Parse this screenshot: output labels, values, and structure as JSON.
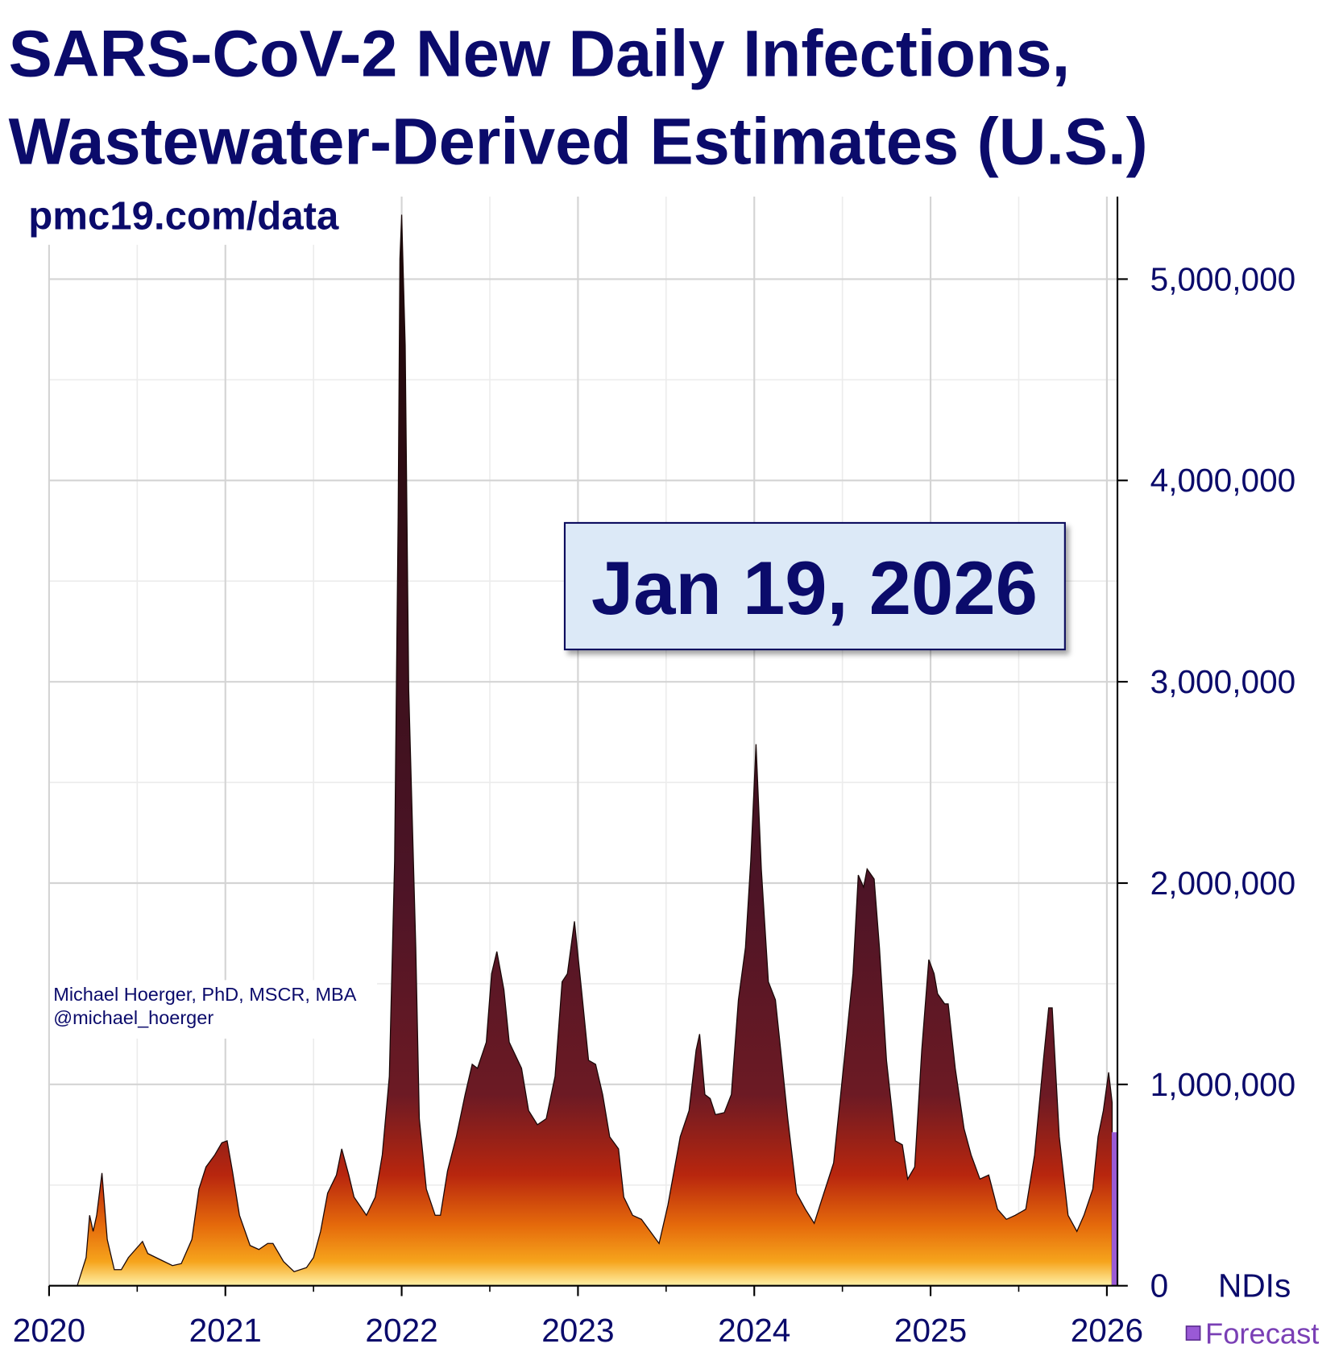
{
  "chart_data": {
    "type": "area",
    "title": [
      "SARS-CoV-2 New Daily Infections,",
      "Wastewater-Derived Estimates (U.S.)"
    ],
    "subtitle": "pmc19.com/data",
    "annotations": [
      "Michael Hoerger, PhD, MSCR, MBA",
      "@michael_hoerger"
    ],
    "date_label": "Jan 19, 2026",
    "y_axis_label": "NDIs",
    "xlim": [
      2020,
      2026.06
    ],
    "xticks": [
      2020,
      2021,
      2022,
      2023,
      2024,
      2025,
      2026
    ],
    "ylim": [
      0,
      5410000
    ],
    "yticks": [
      0,
      {
        "value": 1000000,
        "label": "1,000,000"
      },
      {
        "value": 2000000,
        "label": "2,000,000"
      },
      {
        "value": 3000000,
        "label": "3,000,000"
      },
      {
        "value": 4000000,
        "label": "4,000,000"
      },
      {
        "value": 5000000,
        "label": "5,000,000"
      }
    ],
    "grid": true,
    "legend": "bottom-right",
    "gradient": [
      {
        "value": 0,
        "color": "#fff2a8"
      },
      {
        "value": 120000,
        "color": "#f6a41c"
      },
      {
        "value": 300000,
        "color": "#e56a0b"
      },
      {
        "value": 550000,
        "color": "#b8260e"
      },
      {
        "value": 950000,
        "color": "#6c1a24"
      },
      {
        "value": 2000000,
        "color": "#4c1426"
      },
      {
        "value": 5300000,
        "color": "#1c0808"
      }
    ],
    "series": [
      {
        "name": null,
        "x": [
          2020.16,
          2020.21,
          2020.23,
          2020.25,
          2020.27,
          2020.3,
          2020.33,
          2020.37,
          2020.41,
          2020.45,
          2020.49,
          2020.53,
          2020.56,
          2020.63,
          2020.7,
          2020.75,
          2020.81,
          2020.85,
          2020.89,
          2020.94,
          2020.98,
          2021.01,
          2021.04,
          2021.08,
          2021.14,
          2021.19,
          2021.24,
          2021.27,
          2021.33,
          2021.39,
          2021.46,
          2021.5,
          2021.54,
          2021.58,
          2021.63,
          2021.66,
          2021.7,
          2021.73,
          2021.8,
          2021.85,
          2021.89,
          2021.93,
          2021.96,
          2021.98,
          2021.99,
          2022.0,
          2022.02,
          2022.04,
          2022.08,
          2022.1,
          2022.14,
          2022.19,
          2022.22,
          2022.26,
          2022.31,
          2022.36,
          2022.4,
          2022.43,
          2022.48,
          2022.51,
          2022.54,
          2022.58,
          2022.61,
          2022.68,
          2022.72,
          2022.77,
          2022.82,
          2022.87,
          2022.91,
          2022.94,
          2022.98,
          2023.02,
          2023.06,
          2023.1,
          2023.14,
          2023.18,
          2023.23,
          2023.26,
          2023.31,
          2023.36,
          2023.41,
          2023.46,
          2023.51,
          2023.58,
          2023.63,
          2023.67,
          2023.69,
          2023.72,
          2023.75,
          2023.78,
          2023.83,
          2023.87,
          2023.91,
          2023.95,
          2023.98,
          2024.01,
          2024.04,
          2024.08,
          2024.12,
          2024.15,
          2024.19,
          2024.24,
          2024.29,
          2024.34,
          2024.38,
          2024.45,
          2024.51,
          2024.56,
          2024.59,
          2024.62,
          2024.64,
          2024.68,
          2024.71,
          2024.75,
          2024.8,
          2024.84,
          2024.87,
          2024.91,
          2024.95,
          2024.99,
          2025.02,
          2025.04,
          2025.08,
          2025.1,
          2025.14,
          2025.19,
          2025.23,
          2025.28,
          2025.33,
          2025.38,
          2025.43,
          2025.48,
          2025.54,
          2025.59,
          2025.64,
          2025.67,
          2025.69,
          2025.73,
          2025.78,
          2025.83,
          2025.87,
          2025.92,
          2025.95,
          2025.98,
          2026.01,
          2026.03
        ],
        "values": [
          0,
          140000,
          350000,
          270000,
          350000,
          560000,
          230000,
          80000,
          80000,
          140000,
          180000,
          220000,
          160000,
          130000,
          100000,
          110000,
          230000,
          480000,
          590000,
          650000,
          710000,
          720000,
          570000,
          350000,
          200000,
          180000,
          210000,
          210000,
          120000,
          70000,
          90000,
          140000,
          270000,
          460000,
          550000,
          680000,
          550000,
          440000,
          350000,
          440000,
          650000,
          1040000,
          2110000,
          3820000,
          5100000,
          5320000,
          4670000,
          2960000,
          1680000,
          830000,
          480000,
          350000,
          350000,
          570000,
          740000,
          950000,
          1100000,
          1080000,
          1210000,
          1550000,
          1660000,
          1470000,
          1210000,
          1080000,
          870000,
          800000,
          830000,
          1040000,
          1510000,
          1550000,
          1810000,
          1470000,
          1120000,
          1100000,
          950000,
          740000,
          680000,
          440000,
          350000,
          330000,
          270000,
          210000,
          400000,
          740000,
          870000,
          1170000,
          1250000,
          950000,
          930000,
          850000,
          860000,
          950000,
          1420000,
          1680000,
          2110000,
          2690000,
          2070000,
          1510000,
          1420000,
          1170000,
          830000,
          460000,
          380000,
          310000,
          420000,
          610000,
          1120000,
          1550000,
          2040000,
          1980000,
          2070000,
          2020000,
          1680000,
          1120000,
          720000,
          700000,
          530000,
          590000,
          1170000,
          1620000,
          1550000,
          1450000,
          1400000,
          1400000,
          1080000,
          780000,
          650000,
          530000,
          550000,
          380000,
          330000,
          350000,
          380000,
          650000,
          1120000,
          1380000,
          1380000,
          740000,
          350000,
          270000,
          350000,
          480000,
          740000,
          870000,
          1060000,
          910000
        ]
      },
      {
        "name": "Forecast",
        "color": "#9a5ad6",
        "x": [
          2026.03,
          2026.06
        ],
        "values": [
          760000,
          760000
        ]
      }
    ]
  }
}
